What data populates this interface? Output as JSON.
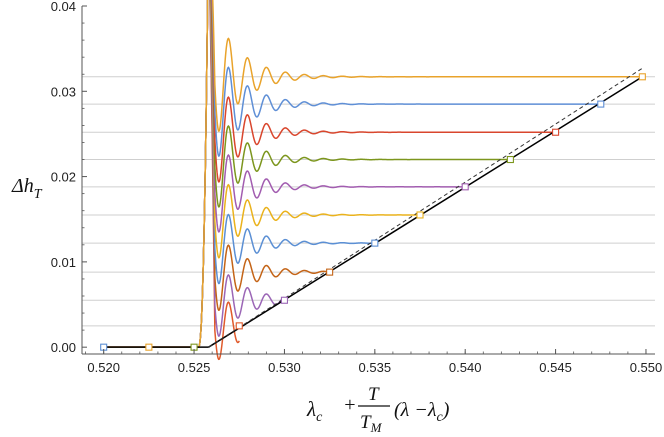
{
  "chart_data": {
    "type": "line",
    "ylabel": "Δh",
    "ylabel_sub": "T",
    "xlabel": {
      "prefix": "λ",
      "prefix_sub": "c",
      "plus": "+",
      "frac_num": "T",
      "frac_den": "T",
      "frac_den_sub": "M",
      "paren": "(λ −λ",
      "paren_sub": "c",
      "close": ")"
    },
    "xlim": [
      0.5188,
      0.5505
    ],
    "ylim": [
      -0.0008,
      0.04
    ],
    "x_ticks": [
      0.52,
      0.525,
      0.53,
      0.535,
      0.54,
      0.545,
      0.55
    ],
    "x_tick_labels": [
      "0.520",
      "0.525",
      "0.530",
      "0.535",
      "0.540",
      "0.545",
      "0.550"
    ],
    "y_ticks": [
      0.0,
      0.01,
      0.02,
      0.03,
      0.04
    ],
    "y_tick_labels": [
      "0.00",
      "0.01",
      "0.02",
      "0.03",
      "0.04"
    ],
    "transition_x": 0.5258,
    "plateaus": [
      0.0025,
      0.0055,
      0.0088,
      0.0122,
      0.0155,
      0.0188,
      0.022,
      0.0252,
      0.0285,
      0.0317
    ],
    "series": [
      {
        "color": "#e05a2b",
        "plateau": 0.0025,
        "end_x": 0.5275,
        "start_x": 0.5257
      },
      {
        "color": "#9b66b6",
        "plateau": 0.0055,
        "end_x": 0.53,
        "start_x": 0.5225
      },
      {
        "color": "#c46417",
        "plateau": 0.0088,
        "end_x": 0.5325,
        "start_x": 0.5203
      },
      {
        "color": "#5b8fd4",
        "plateau": 0.0122,
        "end_x": 0.535,
        "start_x": 0.52
      },
      {
        "color": "#eab21c",
        "plateau": 0.0155,
        "end_x": 0.5375,
        "start_x": 0.5225
      },
      {
        "color": "#a25db0",
        "plateau": 0.0188,
        "end_x": 0.54,
        "start_x": 0.5203
      },
      {
        "color": "#7c961d",
        "plateau": 0.022,
        "end_x": 0.5425,
        "start_x": 0.525
      },
      {
        "color": "#d9462d",
        "plateau": 0.0252,
        "end_x": 0.545,
        "start_x": 0.5225
      },
      {
        "color": "#5f8fd6",
        "plateau": 0.0285,
        "end_x": 0.5475,
        "start_x": 0.52
      },
      {
        "color": "#e9a32b",
        "plateau": 0.0317,
        "end_x": 0.5498,
        "start_x": 0.5225
      }
    ],
    "baseline_markers": [
      {
        "x": 0.52,
        "color": "#5b8fd4"
      },
      {
        "x": 0.5225,
        "color": "#e9a32b"
      },
      {
        "x": 0.525,
        "color": "#7c961d"
      }
    ],
    "solid_line": {
      "x": [
        0.5258,
        0.5498
      ],
      "y": [
        0.0,
        0.0317
      ]
    },
    "dashed_line": {
      "x": [
        0.5258,
        0.5498
      ],
      "y": [
        0.0,
        0.0327
      ]
    },
    "colors": {
      "axis": "#555555",
      "grid": "#cfcfcf",
      "solid": "#000000",
      "dashed": "#333333"
    }
  }
}
